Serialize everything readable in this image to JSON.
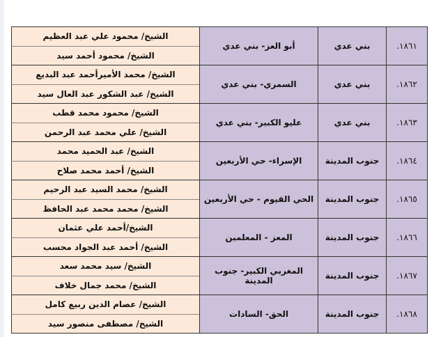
{
  "rows": [
    {
      "num": "١٨٦١.",
      "district": "بني عدي",
      "place": "أبو العز- بني عدي",
      "names": [
        "الشيخ/ محمود علي عبد العظيم",
        "الشيخ/ محمود أحمد سيد"
      ]
    },
    {
      "num": "١٨٦٢.",
      "district": "بني عدي",
      "place": "السمري- بني عدي",
      "names": [
        "الشيخ/ محمد الأميرأحمد عبد البديع",
        "الشيخ/ عبد الشكور عبد العال سيد"
      ]
    },
    {
      "num": "١٨٦٣.",
      "district": "بني عدي",
      "place": "عليو الكبير- بني عدي",
      "names": [
        "الشيخ/ محمود محمد قطب",
        "الشيخ/ علي محمد عبد الرحمن"
      ]
    },
    {
      "num": "١٨٦٤.",
      "district": "جنوب المدينة",
      "place": "الإسراء- حي الأربعين",
      "names": [
        "الشيخ/ عبد الحميد محمد",
        "الشيخ/ أحمد محمد صلاح"
      ]
    },
    {
      "num": "١٨٦٥.",
      "district": "جنوب المدينة",
      "place": "الحي القيوم - حي الأربعين",
      "names": [
        "الشيخ/ محمد السيد عبد الرحيم",
        "الشيخ/ محمد محمد عبد الحافظ"
      ]
    },
    {
      "num": "١٨٦٦.",
      "district": "جنوب المدينة",
      "place": "المعز - المعلمين",
      "names": [
        "الشيخ/أحمد علي عثمان",
        "الشيخ/ أحمد عبد الجواد محسب"
      ]
    },
    {
      "num": "١٨٦٧.",
      "district": "جنوب المدينة",
      "place": "المغربي الكبير- جنوب المدينة",
      "names": [
        "الشيخ/ سيد محمد سعد",
        "الشيخ/ محمد جمال خلاف"
      ]
    },
    {
      "num": "١٨٦٨.",
      "district": "جنوب المدينة",
      "place": "الحق- السادات",
      "names": [
        "الشيخ/ عصام الدين ربيع كامل",
        "الشيخ/ مصطفى منصور سيد"
      ]
    }
  ]
}
